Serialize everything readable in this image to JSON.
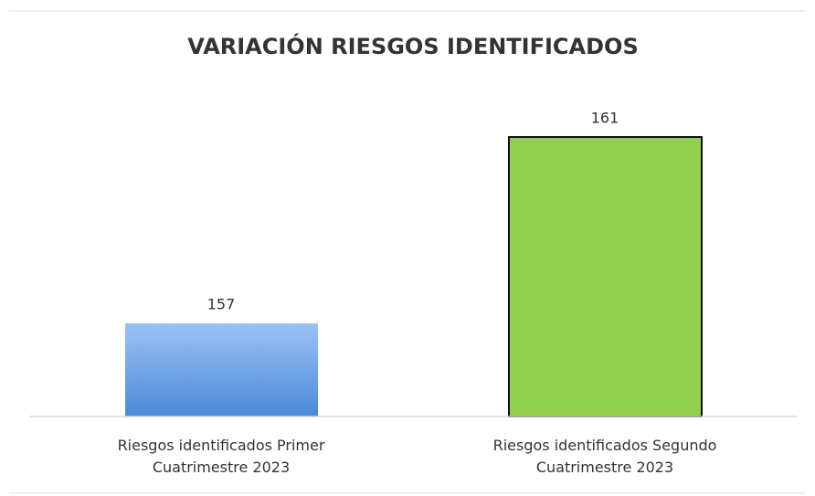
{
  "chart_data": {
    "type": "bar",
    "title": "VARIACIÓN RIESGOS IDENTIFICADOS",
    "categories": [
      "Riesgos identificados Primer Cuatrimestre 2023",
      "Riesgos identificados Segundo Cuatrimestre 2023"
    ],
    "values": [
      157,
      161
    ],
    "colors": [
      "#4a8ad8",
      "#92d050"
    ],
    "ylim": [
      155,
      162
    ]
  }
}
